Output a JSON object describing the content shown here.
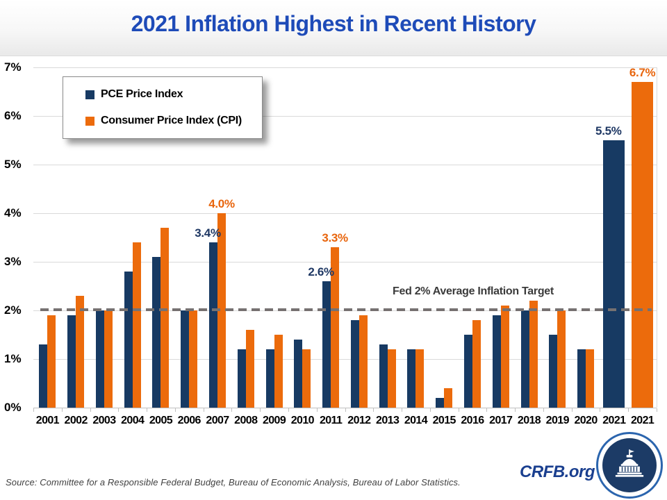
{
  "title": "2021 Inflation Highest in Recent History",
  "legend": {
    "items": [
      {
        "label": "PCE Price Index",
        "color_key": "pce"
      },
      {
        "label": "Consumer Price Index (CPI)",
        "color_key": "cpi"
      }
    ]
  },
  "target_line_label": "Fed 2% Average Inflation Target",
  "source": "Source: Committee for a Responsible Federal Budget, Bureau of Economic Analysis, Bureau of Labor Statistics.",
  "footer": {
    "crfb_label": "CRFB.org"
  },
  "colors": {
    "pce": "#173a63",
    "cpi": "#ec6b0c",
    "pce_label": "#1f3864",
    "cpi_label": "#e8650d",
    "title": "#1e4bb8",
    "crfb": "#1a3f8f",
    "target_line": "#767171",
    "gridline": "#d9d9d9"
  },
  "chart_data": {
    "type": "bar",
    "title": "2021 Inflation Highest in Recent History",
    "categories": [
      "2001",
      "2002",
      "2003",
      "2004",
      "2005",
      "2006",
      "2007",
      "2008",
      "2009",
      "2010",
      "2011",
      "2012",
      "2013",
      "2014",
      "2015",
      "2016",
      "2017",
      "2018",
      "2019",
      "2020",
      "2021",
      "2021"
    ],
    "series": [
      {
        "name": "PCE Price Index",
        "color_key": "pce",
        "values": [
          1.3,
          1.9,
          2.0,
          2.8,
          3.1,
          2.0,
          3.4,
          1.2,
          1.2,
          1.4,
          2.6,
          1.8,
          1.3,
          1.2,
          0.2,
          1.5,
          1.9,
          2.0,
          1.5,
          1.2,
          5.5,
          null
        ]
      },
      {
        "name": "Consumer Price Index (CPI)",
        "color_key": "cpi",
        "values": [
          1.9,
          2.3,
          2.0,
          3.4,
          3.7,
          2.0,
          4.0,
          1.6,
          1.5,
          1.2,
          3.3,
          1.9,
          1.2,
          1.2,
          0.4,
          1.8,
          2.1,
          2.2,
          2.0,
          1.2,
          null,
          6.7
        ]
      }
    ],
    "annotations": [
      {
        "category_index": 6,
        "series": 0,
        "text": "3.4%"
      },
      {
        "category_index": 6,
        "series": 1,
        "text": "4.0%"
      },
      {
        "category_index": 10,
        "series": 0,
        "text": "2.6%"
      },
      {
        "category_index": 10,
        "series": 1,
        "text": "3.3%"
      },
      {
        "category_index": 20,
        "series": 0,
        "text": "5.5%"
      },
      {
        "category_index": 21,
        "series": 1,
        "text": "6.7%"
      }
    ],
    "y_ticks": [
      "0%",
      "1%",
      "2%",
      "3%",
      "4%",
      "5%",
      "6%",
      "7%"
    ],
    "ylim": [
      0,
      7
    ],
    "grid": true,
    "legend_position": "top-left",
    "target_line_value": 2
  }
}
